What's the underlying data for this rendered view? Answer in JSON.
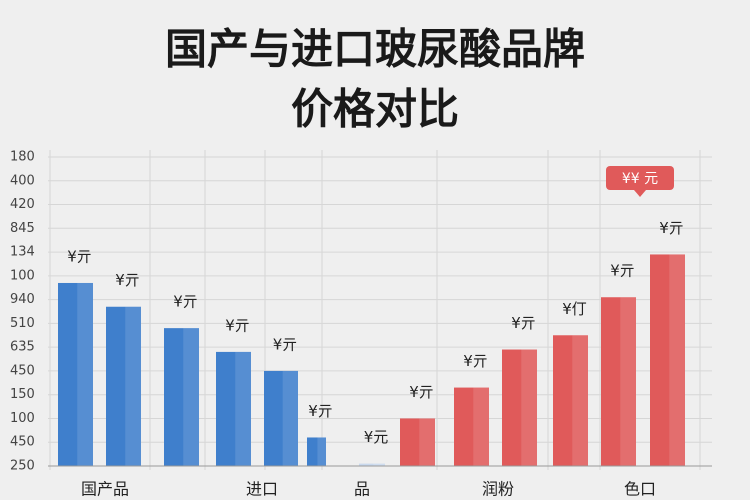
{
  "chart_data": {
    "type": "bar",
    "title": [
      "国产与进口玻尿酸品牌",
      "价格对比"
    ],
    "ylim": [
      0,
      13
    ],
    "yticks": [
      {
        "value": 0,
        "label": "250"
      },
      {
        "value": 1,
        "label": "450"
      },
      {
        "value": 2,
        "label": "100"
      },
      {
        "value": 3,
        "label": "150"
      },
      {
        "value": 4,
        "label": "450"
      },
      {
        "value": 5,
        "label": "635"
      },
      {
        "value": 6,
        "label": "510"
      },
      {
        "value": 7,
        "label": "940"
      },
      {
        "value": 8,
        "label": "100"
      },
      {
        "value": 9,
        "label": "134"
      },
      {
        "value": 10,
        "label": "845"
      },
      {
        "value": 11,
        "label": "420"
      },
      {
        "value": 12,
        "label": "400"
      },
      {
        "value": 13,
        "label": "180"
      }
    ],
    "grid": true,
    "categories": [
      null,
      null,
      null,
      null,
      null,
      null,
      null,
      null,
      null,
      null,
      null,
      null,
      null
    ],
    "values": [
      7.7,
      6.7,
      5.8,
      4.8,
      4.0,
      1.2,
      0.1,
      2.0,
      3.3,
      4.9,
      5.5,
      7.1,
      8.9
    ],
    "colors": [
      "#3f7fcc",
      "#3f7fcc",
      "#3f7fcc",
      "#3f7fcc",
      "#3f7fcc",
      "#3f7fcc",
      "#c9d9ee",
      "#e05a5a",
      "#e05a5a",
      "#e05a5a",
      "#e05a5a",
      "#e05a5a",
      "#e05a5a"
    ],
    "bar_labels": [
      "¥亓",
      "¥亓",
      "¥亓",
      "¥亓",
      "¥亓",
      "¥亓",
      "¥元",
      "¥亓",
      "¥亓",
      "¥亓",
      "¥仃",
      "¥亓",
      "¥亓"
    ],
    "x_axis_labels": [
      "国产品",
      "进口",
      "品",
      "润粉",
      "色口"
    ],
    "callout": "¥¥ 元"
  }
}
